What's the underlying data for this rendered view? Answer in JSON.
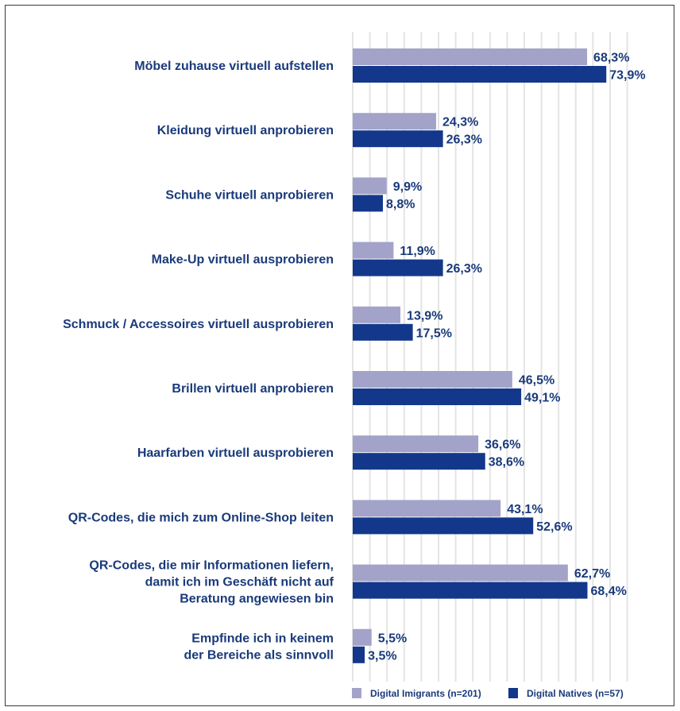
{
  "chart_data": {
    "type": "bar",
    "orientation": "horizontal",
    "categories": [
      [
        "Möbel zuhause virtuell aufstellen"
      ],
      [
        "Kleidung virtuell anprobieren"
      ],
      [
        "Schuhe virtuell anprobieren"
      ],
      [
        "Make-Up virtuell ausprobieren"
      ],
      [
        "Schmuck / Accessoires virtuell ausprobieren"
      ],
      [
        "Brillen virtuell anprobieren"
      ],
      [
        "Haarfarben virtuell ausprobieren"
      ],
      [
        "QR-Codes, die mich zum Online-Shop leiten"
      ],
      [
        "QR-Codes, die mir Informationen liefern,",
        "damit ich im Geschäft nicht auf",
        "Beratung angewiesen bin"
      ],
      [
        "Empfinde ich in keinem",
        "der Bereiche als sinnvoll"
      ]
    ],
    "series": [
      {
        "name": "Digital Imigrants (n=201)",
        "color": "#a3a3c9",
        "values": [
          68.3,
          24.3,
          9.9,
          11.9,
          13.9,
          46.5,
          36.6,
          43.1,
          62.7,
          5.5
        ],
        "labels": [
          "68,3%",
          "24,3%",
          "9,9%",
          "11,9%",
          "13,9%",
          "46,5%",
          "36,6%",
          "43,1%",
          "62,7%",
          "5,5%"
        ]
      },
      {
        "name": "Digital Natives (n=57)",
        "color": "#13378a",
        "values": [
          73.9,
          26.3,
          8.8,
          26.3,
          17.5,
          49.1,
          38.6,
          52.6,
          68.4,
          3.5
        ],
        "labels": [
          "73,9%",
          "26,3%",
          "8,8%",
          "26,3%",
          "17,5%",
          "49,1%",
          "38,6%",
          "52,6%",
          "68,4%",
          "3,5%"
        ]
      }
    ],
    "xlim": [
      0,
      80
    ],
    "grid": "vertical",
    "legend": "bottom"
  }
}
